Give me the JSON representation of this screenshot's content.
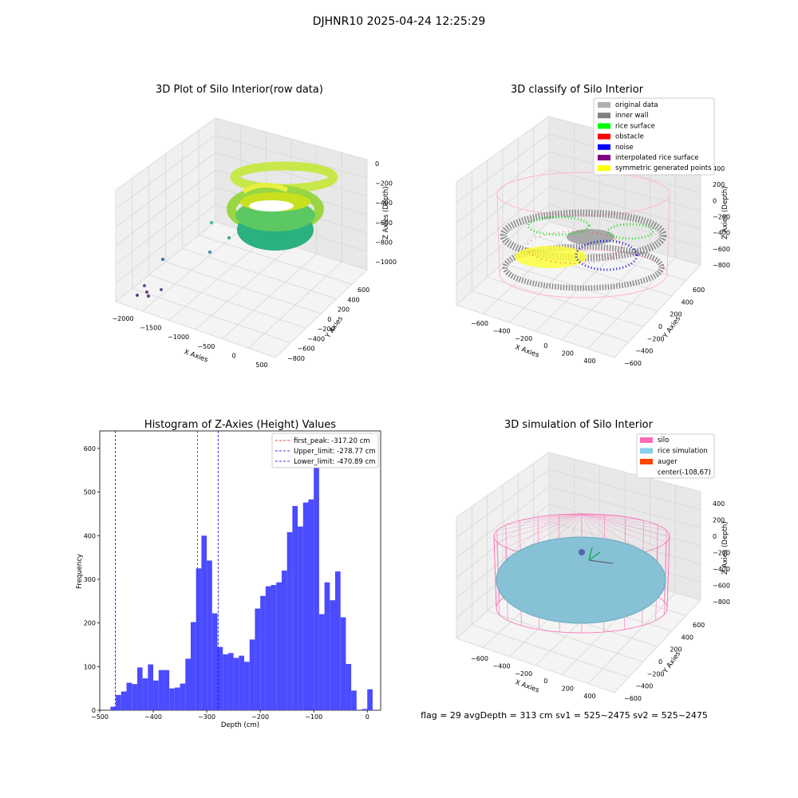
{
  "suptitle": "DJHNR10 2025-04-24 12:25:29",
  "footer": "flag = 29  avgDepth = 313 cm  sv1 = 525~2475  sv2 = 525~2475",
  "colors": {
    "bar": "#4b4bff",
    "first_peak_line": "#ff0000",
    "limit_line": "#0000ff",
    "silo": "#ff69b4",
    "rice_simulation": "#87ceeb",
    "auger": "#ff4500",
    "original_data": "#b0b0b0",
    "inner_wall": "#808080",
    "rice_surface": "#00ff00",
    "obstacle": "#ff0000",
    "noise": "#0000ff",
    "interpolated_rice_surface": "#800080",
    "symmetric_points": "#ffff00"
  },
  "panels": {
    "raw": {
      "title": "3D Plot of Silo Interior(row data)",
      "xlabel": "X Axies",
      "ylabel": "Y Axies",
      "zlabel": "Z Axies (Depth)",
      "xticks": [
        "−2000",
        "−1500",
        "−1000",
        "−500",
        "0",
        "500"
      ],
      "yticks": [
        "−800",
        "−600",
        "−400",
        "−200",
        "0",
        "200",
        "400",
        "600"
      ],
      "zticks": [
        "0",
        "−200",
        "−400",
        "−600",
        "−800",
        "−1000"
      ]
    },
    "classify": {
      "title": "3D classify of Silo Interior",
      "xlabel": "X Axies",
      "ylabel": "Y Axies",
      "zlabel": "Z Axies (Depth)",
      "xticks": [
        "−600",
        "−400",
        "−200",
        "0",
        "200",
        "400"
      ],
      "yticks": [
        "−600",
        "−400",
        "−200",
        "0",
        "200",
        "400",
        "600"
      ],
      "zticks": [
        "400",
        "200",
        "0",
        "−200",
        "−400",
        "−600",
        "−800"
      ],
      "legend": [
        {
          "label": "original data",
          "color": "#b0b0b0"
        },
        {
          "label": "inner wall",
          "color": "#808080"
        },
        {
          "label": "rice surface",
          "color": "#00ff00"
        },
        {
          "label": "obstacle",
          "color": "#ff0000"
        },
        {
          "label": "noise",
          "color": "#0000ff"
        },
        {
          "label": "interpolated rice surface",
          "color": "#800080"
        },
        {
          "label": "symmetric generated points",
          "color": "#ffff00"
        }
      ]
    },
    "simulation": {
      "title": "3D simulation of Silo Interior",
      "xlabel": "X Axies",
      "ylabel": "Y Axies",
      "zlabel": "Z Axies (Depth)",
      "xticks": [
        "−600",
        "−400",
        "−200",
        "0",
        "200",
        "400"
      ],
      "yticks": [
        "−600",
        "−400",
        "−200",
        "0",
        "200",
        "400",
        "600"
      ],
      "zticks": [
        "400",
        "200",
        "0",
        "−200",
        "−400",
        "−600",
        "−800"
      ],
      "legend": [
        {
          "label": "silo",
          "color": "#ff69b4"
        },
        {
          "label": "rice simulation",
          "color": "#87ceeb"
        },
        {
          "label": "auger",
          "color": "#ff4500"
        },
        {
          "label": "center(-108,67)",
          "color": ""
        }
      ]
    }
  },
  "chart_data": {
    "type": "bar",
    "title": "Histogram of Z-Axies (Height) Values",
    "xlabel": "Depth (cm)",
    "ylabel": "Frequency",
    "xlim": [
      -500,
      25
    ],
    "ylim": [
      0,
      640
    ],
    "xticks": [
      -500,
      -400,
      -300,
      -200,
      -100,
      0
    ],
    "yticks": [
      0,
      100,
      200,
      300,
      400,
      500,
      600
    ],
    "bin_width": 10,
    "bins_start": [
      -480,
      -470,
      -460,
      -450,
      -440,
      -430,
      -420,
      -410,
      -400,
      -390,
      -380,
      -370,
      -360,
      -350,
      -340,
      -330,
      -320,
      -310,
      -300,
      -290,
      -280,
      -270,
      -260,
      -250,
      -240,
      -230,
      -220,
      -210,
      -200,
      -190,
      -180,
      -170,
      -160,
      -150,
      -140,
      -130,
      -120,
      -110,
      -100,
      -90,
      -80,
      -70,
      -60,
      -50,
      -40,
      -30,
      -20,
      -10,
      0
    ],
    "values": [
      8,
      35,
      43,
      63,
      60,
      98,
      73,
      105,
      68,
      92,
      92,
      50,
      52,
      61,
      118,
      202,
      325,
      400,
      343,
      222,
      145,
      128,
      131,
      120,
      125,
      111,
      162,
      233,
      262,
      284,
      287,
      293,
      320,
      408,
      468,
      421,
      476,
      483,
      590,
      220,
      293,
      252,
      318,
      213,
      106,
      45,
      0,
      3,
      48
    ],
    "lines": [
      {
        "label": "first_peak: -317.20 cm",
        "x": -317.2,
        "color": "#ff0000"
      },
      {
        "label": "Upper_limit: -278.77 cm",
        "x": -278.77,
        "color": "#0000ff"
      },
      {
        "label": "Lower_limit: -470.89 cm",
        "x": -470.89,
        "color": "#0000ff"
      }
    ],
    "legend_position": "upper-right"
  }
}
